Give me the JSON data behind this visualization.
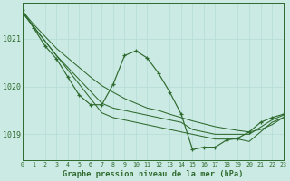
{
  "bg_color": "#cceae4",
  "grid_color": "#aad4cc",
  "line_color": "#2d6a2d",
  "xlim": [
    0,
    23
  ],
  "ylim": [
    1018.45,
    1021.75
  ],
  "yticks": [
    1019,
    1020,
    1021
  ],
  "xticks": [
    0,
    1,
    2,
    3,
    4,
    5,
    6,
    7,
    8,
    9,
    10,
    11,
    12,
    13,
    14,
    15,
    16,
    17,
    18,
    19,
    20,
    21,
    22,
    23
  ],
  "xlabel": "Graphe pression niveau de la mer (hPa)",
  "line1": [
    1021.55,
    1021.25,
    1020.95,
    1020.65,
    1020.35,
    1020.05,
    1019.75,
    1019.45,
    1019.35,
    1019.3,
    1019.25,
    1019.2,
    1019.15,
    1019.1,
    1019.05,
    1019.0,
    1018.95,
    1018.9,
    1018.9,
    1018.9,
    1018.85,
    1019.05,
    1019.25,
    1019.35
  ],
  "line2": [
    1021.55,
    1021.25,
    1020.95,
    1020.65,
    1020.4,
    1020.15,
    1019.9,
    1019.65,
    1019.55,
    1019.5,
    1019.45,
    1019.4,
    1019.35,
    1019.3,
    1019.25,
    1019.1,
    1019.05,
    1019.0,
    1019.0,
    1019.0,
    1019.0,
    1019.15,
    1019.3,
    1019.4
  ],
  "line3": [
    1021.58,
    1021.3,
    1021.05,
    1020.8,
    1020.6,
    1020.4,
    1020.2,
    1020.02,
    1019.88,
    1019.75,
    1019.65,
    1019.55,
    1019.5,
    1019.42,
    1019.35,
    1019.28,
    1019.22,
    1019.16,
    1019.12,
    1019.08,
    1019.05,
    1019.1,
    1019.2,
    1019.35
  ],
  "line_markers": [
    1021.6,
    1021.22,
    1020.85,
    1020.58,
    1020.2,
    1019.82,
    1019.62,
    1019.62,
    1020.05,
    1020.65,
    1020.75,
    1020.6,
    1020.28,
    1019.88,
    1019.42,
    1018.68,
    1018.73,
    1018.73,
    1018.88,
    1018.92,
    1019.05,
    1019.25,
    1019.35,
    1019.42
  ]
}
